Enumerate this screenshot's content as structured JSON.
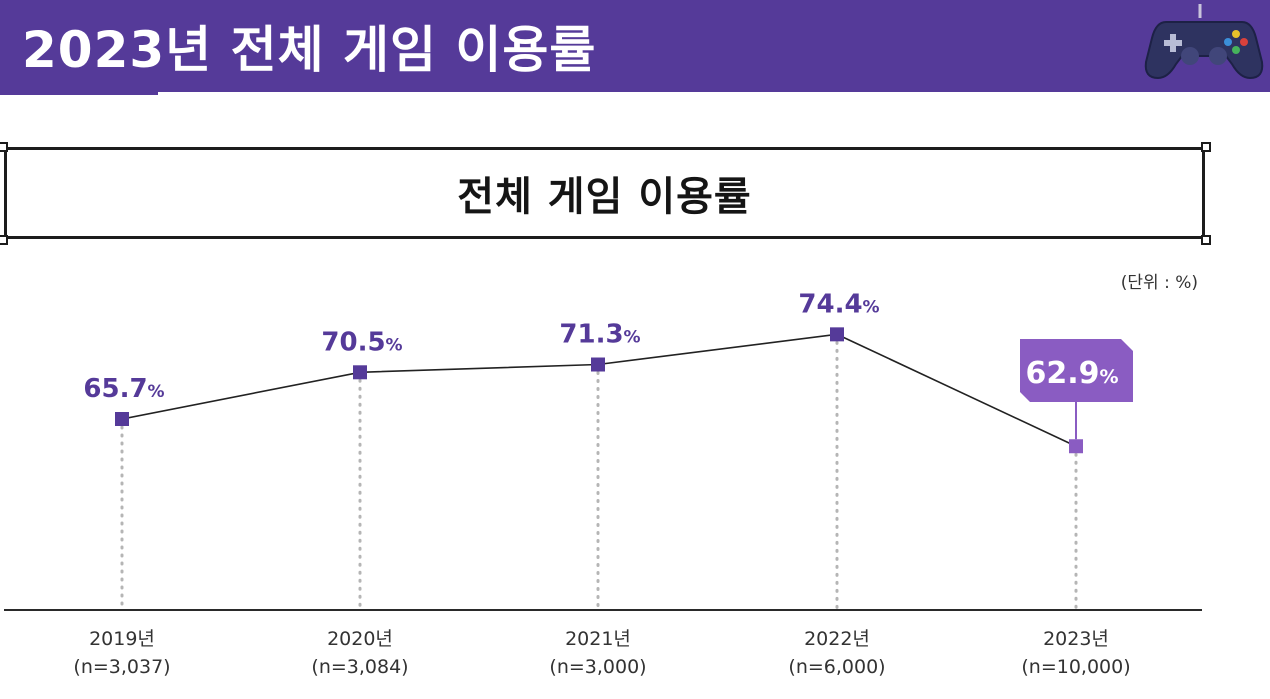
{
  "header": {
    "title": "2023년 전체 게임 이용률",
    "icon": "gamepad-icon",
    "color": "#553a99"
  },
  "chart_data": {
    "type": "line",
    "title": "전체 게임 이용률",
    "unit_note": "(단위 : %)",
    "categories": [
      "2019년",
      "2020년",
      "2021년",
      "2022년",
      "2023년"
    ],
    "sample_sizes": [
      "(n=3,037)",
      "(n=3,084)",
      "(n=3,000)",
      "(n=6,000)",
      "(n=10,000)"
    ],
    "values": [
      65.7,
      70.5,
      71.3,
      74.4,
      62.9
    ],
    "value_suffix": "%",
    "highlight_index": 4,
    "ylim": [
      50,
      80
    ],
    "grid": false,
    "colors": {
      "marker": "#553a99",
      "highlight_marker": "#8a5cc2",
      "highlight_box": "#8a5cc2",
      "line": "#222222",
      "label": "#553a99"
    }
  }
}
